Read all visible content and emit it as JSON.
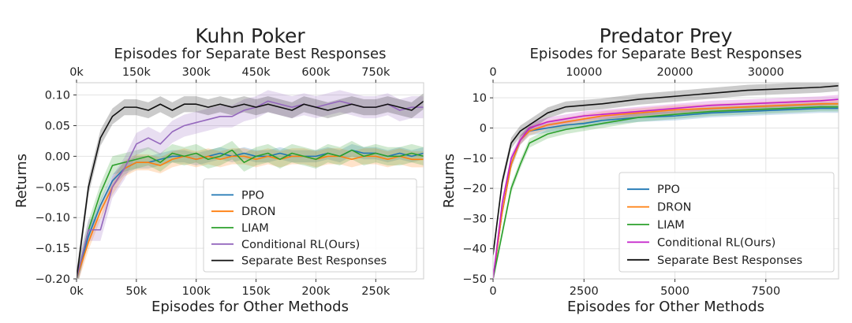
{
  "chart_data": [
    {
      "type": "line",
      "title": "Kuhn Poker",
      "xlabel": "Episodes for Other Methods",
      "x2label": "Episodes for Separate Best Responses",
      "ylabel": "Returns",
      "xlim": [
        0,
        290000
      ],
      "ylim": [
        -0.2,
        0.12
      ],
      "xticks": [
        0,
        50000,
        100000,
        150000,
        200000,
        250000
      ],
      "xtick_labels": [
        "0k",
        "50k",
        "100k",
        "150k",
        "200k",
        "250k"
      ],
      "x2lim": [
        0,
        870000
      ],
      "x2ticks": [
        0,
        150000,
        300000,
        450000,
        600000,
        750000
      ],
      "x2tick_labels": [
        "0k",
        "150k",
        "300k",
        "450k",
        "600k",
        "750k"
      ],
      "yticks": [
        -0.2,
        -0.15,
        -0.1,
        -0.05,
        0.0,
        0.05,
        0.1
      ],
      "ytick_labels": [
        "−0.20",
        "−0.15",
        "−0.10",
        "−0.05",
        "0.00",
        "0.05",
        "0.10"
      ],
      "legend": {
        "position": "lower-right",
        "entries": [
          "PPO",
          "DRON",
          "LIAM",
          "Conditional RL(Ours)",
          "Separate Best Responses"
        ]
      },
      "series": [
        {
          "name": "PPO",
          "color": "#1f77b4",
          "x": [
            0,
            10000,
            20000,
            30000,
            40000,
            50000,
            60000,
            70000,
            80000,
            90000,
            100000,
            110000,
            120000,
            130000,
            140000,
            150000,
            160000,
            170000,
            180000,
            190000,
            200000,
            210000,
            220000,
            230000,
            240000,
            250000,
            260000,
            270000,
            280000,
            290000
          ],
          "values": [
            -0.2,
            -0.13,
            -0.08,
            -0.04,
            -0.02,
            -0.01,
            -0.01,
            -0.005,
            0.0,
            0.0,
            -0.005,
            0.0,
            0.005,
            0.0,
            0.005,
            0.0,
            0.0,
            0.005,
            0.0,
            0.0,
            0.0,
            0.005,
            0.0,
            0.01,
            0.005,
            0.005,
            0.0,
            0.005,
            0.0,
            0.005
          ],
          "band": 0.01
        },
        {
          "name": "DRON",
          "color": "#ff7f0e",
          "x": [
            0,
            10000,
            20000,
            30000,
            40000,
            50000,
            60000,
            70000,
            80000,
            90000,
            100000,
            110000,
            120000,
            130000,
            140000,
            150000,
            160000,
            170000,
            180000,
            190000,
            200000,
            210000,
            220000,
            230000,
            240000,
            250000,
            260000,
            270000,
            280000,
            290000
          ],
          "values": [
            -0.2,
            -0.14,
            -0.09,
            -0.05,
            -0.02,
            -0.01,
            -0.01,
            -0.015,
            -0.005,
            0.0,
            -0.005,
            0.0,
            -0.005,
            0.0,
            0.0,
            -0.005,
            0.0,
            -0.005,
            0.0,
            0.0,
            -0.005,
            0.0,
            0.0,
            -0.005,
            0.0,
            0.0,
            -0.005,
            0.0,
            -0.005,
            -0.005
          ],
          "band": 0.013
        },
        {
          "name": "LIAM",
          "color": "#2ca02c",
          "x": [
            0,
            10000,
            20000,
            30000,
            40000,
            50000,
            60000,
            70000,
            80000,
            90000,
            100000,
            110000,
            120000,
            130000,
            140000,
            150000,
            160000,
            170000,
            180000,
            190000,
            200000,
            210000,
            220000,
            230000,
            240000,
            250000,
            260000,
            270000,
            280000,
            290000
          ],
          "values": [
            -0.2,
            -0.12,
            -0.06,
            -0.015,
            -0.01,
            -0.005,
            0.0,
            -0.01,
            0.005,
            0.0,
            0.005,
            -0.005,
            0.0,
            0.01,
            -0.01,
            0.0,
            0.005,
            -0.005,
            0.005,
            0.0,
            -0.005,
            0.005,
            0.0,
            0.01,
            0.0,
            0.005,
            0.0,
            0.0,
            0.005,
            0.0
          ],
          "band": 0.015
        },
        {
          "name": "Conditional RL(Ours)",
          "color": "#9467bd",
          "x": [
            0,
            10000,
            20000,
            30000,
            40000,
            50000,
            60000,
            70000,
            80000,
            90000,
            100000,
            110000,
            120000,
            130000,
            140000,
            150000,
            160000,
            170000,
            180000,
            190000,
            200000,
            210000,
            220000,
            230000,
            240000,
            250000,
            260000,
            270000,
            280000,
            290000
          ],
          "values": [
            -0.2,
            -0.12,
            -0.12,
            -0.05,
            -0.02,
            0.02,
            0.03,
            0.02,
            0.04,
            0.05,
            0.055,
            0.06,
            0.065,
            0.065,
            0.075,
            0.08,
            0.09,
            0.085,
            0.08,
            0.085,
            0.08,
            0.085,
            0.09,
            0.085,
            0.08,
            0.08,
            0.085,
            0.075,
            0.08,
            0.08
          ],
          "band": 0.018
        },
        {
          "name": "Separate Best Responses",
          "color": "#111111",
          "x": [
            0,
            10000,
            20000,
            30000,
            40000,
            50000,
            60000,
            70000,
            80000,
            90000,
            100000,
            110000,
            120000,
            130000,
            140000,
            150000,
            160000,
            170000,
            180000,
            190000,
            200000,
            210000,
            220000,
            230000,
            240000,
            250000,
            260000,
            270000,
            280000,
            290000
          ],
          "values": [
            -0.2,
            -0.05,
            0.03,
            0.065,
            0.08,
            0.08,
            0.075,
            0.085,
            0.075,
            0.085,
            0.085,
            0.08,
            0.085,
            0.08,
            0.085,
            0.08,
            0.085,
            0.08,
            0.075,
            0.085,
            0.08,
            0.075,
            0.08,
            0.085,
            0.08,
            0.08,
            0.085,
            0.08,
            0.075,
            0.09
          ],
          "band": 0.013
        }
      ]
    },
    {
      "type": "line",
      "title": "Predator Prey",
      "xlabel": "Episodes for Other Methods",
      "x2label": "Episodes for Separate Best Responses",
      "ylabel": "Returns",
      "xlim": [
        0,
        9500
      ],
      "ylim": [
        -50,
        15
      ],
      "xticks": [
        0,
        2500,
        5000,
        7500
      ],
      "xtick_labels": [
        "0",
        "2500",
        "5000",
        "7500"
      ],
      "x2lim": [
        0,
        38000
      ],
      "x2ticks": [
        0,
        10000,
        20000,
        30000
      ],
      "x2tick_labels": [
        "0",
        "10000",
        "20000",
        "30000"
      ],
      "yticks": [
        -50,
        -40,
        -30,
        -20,
        -10,
        0,
        10
      ],
      "ytick_labels": [
        "−50",
        "−40",
        "−30",
        "−20",
        "−10",
        "0",
        "10"
      ],
      "legend": {
        "position": "lower-right",
        "entries": [
          "PPO",
          "DRON",
          "LIAM",
          "Conditional RL(Ours)",
          "Separate Best Responses"
        ]
      },
      "series": [
        {
          "name": "PPO",
          "color": "#1f77b4",
          "x": [
            0,
            250,
            500,
            750,
            1000,
            1500,
            2000,
            2500,
            3000,
            4000,
            5000,
            6000,
            7000,
            8000,
            9000,
            9500
          ],
          "values": [
            -50,
            -28,
            -12,
            -4,
            -1,
            0,
            1,
            1.5,
            2.5,
            3.5,
            4,
            5,
            5.5,
            6,
            6.5,
            6.5
          ],
          "band": 1.5
        },
        {
          "name": "DRON",
          "color": "#ff7f0e",
          "x": [
            0,
            250,
            500,
            750,
            1000,
            1500,
            2000,
            2500,
            3000,
            4000,
            5000,
            6000,
            7000,
            8000,
            9000,
            9500
          ],
          "values": [
            -50,
            -28,
            -12,
            -4,
            -1,
            1,
            2,
            3,
            4,
            5,
            6,
            6.5,
            7,
            7.5,
            8,
            8
          ],
          "band": 1.5
        },
        {
          "name": "LIAM",
          "color": "#2ca02c",
          "x": [
            0,
            250,
            500,
            750,
            1000,
            1500,
            2000,
            2500,
            3000,
            4000,
            5000,
            6000,
            7000,
            8000,
            9000,
            9500
          ],
          "values": [
            -50,
            -35,
            -20,
            -12,
            -5,
            -2,
            -0.5,
            0.5,
            1.5,
            3.5,
            4.5,
            5.5,
            6,
            6.5,
            7,
            7
          ],
          "band": 1.5
        },
        {
          "name": "Conditional RL(Ours)",
          "color": "#c31fc9",
          "x": [
            0,
            250,
            500,
            750,
            1000,
            1500,
            2000,
            2500,
            3000,
            4000,
            5000,
            6000,
            7000,
            8000,
            9000,
            9500
          ],
          "values": [
            -50,
            -25,
            -10,
            -4,
            0,
            2,
            3,
            4,
            4.5,
            5.5,
            6.5,
            7.5,
            8,
            8.5,
            9,
            9.5
          ],
          "band": 1.5
        },
        {
          "name": "Separate Best Responses",
          "color": "#111111",
          "x": [
            0,
            250,
            500,
            750,
            1000,
            1500,
            2000,
            2500,
            3000,
            4000,
            5000,
            6000,
            7000,
            8000,
            9000,
            9500
          ],
          "values": [
            -42,
            -18,
            -5,
            -1,
            1,
            5,
            7,
            7.5,
            8,
            9.5,
            10.5,
            11.5,
            12.5,
            13,
            13.5,
            14
          ],
          "band": 1.8
        }
      ]
    }
  ]
}
